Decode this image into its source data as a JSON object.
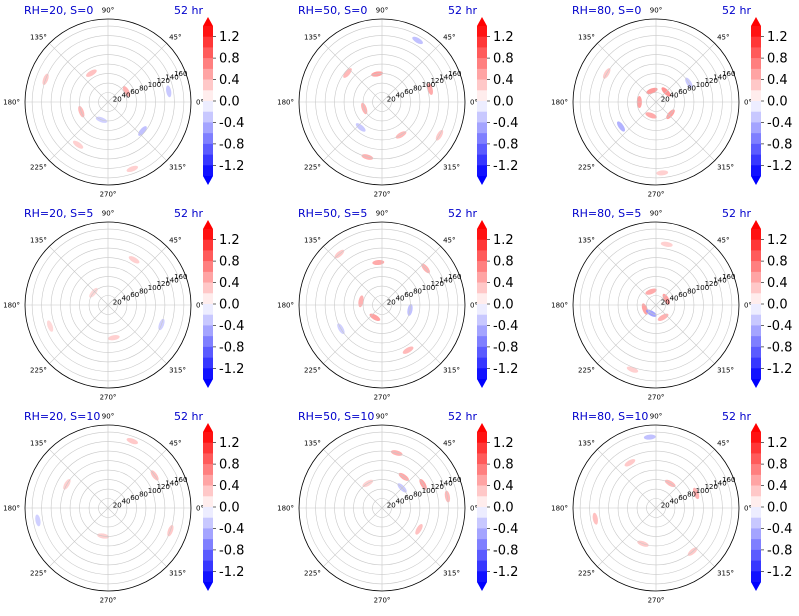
{
  "figure": {
    "panel_style": {
      "title_color": "#0000cc",
      "ring_color": "#c8c8c8",
      "spoke_color": "#c8c8c8",
      "outline_color": "#000000",
      "disc_fill": "#ffffff",
      "positive_color": "#ff0000",
      "negative_color": "#0000ff"
    },
    "colorbar": {
      "min": -1.4,
      "max": 1.4,
      "levels": 14,
      "tick_labels": [
        "1.2",
        "0.8",
        "0.4",
        "0.0",
        "-0.4",
        "-0.8",
        "-1.2"
      ],
      "ticks": [
        1.2,
        0.8,
        0.4,
        0.0,
        -0.4,
        -0.8,
        -1.2
      ],
      "extend": "both",
      "colormap": "bwr"
    }
  },
  "chart_data": [
    {
      "type": "heatmap",
      "projection": "polar",
      "title_left": "RH=20, S=0",
      "title_right": "52 hr",
      "theta_tick_labels": [
        "0°",
        "45°",
        "90°",
        "135°",
        "180°",
        "225°",
        "270°",
        "315°"
      ],
      "r_tick_labels": [
        "20",
        "40",
        "60",
        "80",
        "100",
        "120",
        "140",
        "160"
      ],
      "r_ticks": [
        20,
        40,
        60,
        80,
        100,
        120,
        140,
        160
      ],
      "rlim": [
        0,
        175
      ],
      "patches": [
        {
          "theta": 30,
          "r": 45,
          "value": 0.5
        },
        {
          "theta": 120,
          "r": 70,
          "value": 0.4
        },
        {
          "theta": 160,
          "r": 140,
          "value": 0.35
        },
        {
          "theta": 200,
          "r": 60,
          "value": 0.45
        },
        {
          "theta": 235,
          "r": 110,
          "value": 0.3
        },
        {
          "theta": 290,
          "r": 150,
          "value": 0.3
        },
        {
          "theta": 10,
          "r": 130,
          "value": -0.35
        },
        {
          "theta": 320,
          "r": 95,
          "value": -0.4
        },
        {
          "theta": 250,
          "r": 40,
          "value": -0.3
        }
      ]
    },
    {
      "type": "heatmap",
      "projection": "polar",
      "title_left": "RH=50, S=0",
      "title_right": "52 hr",
      "theta_tick_labels": [
        "0°",
        "45°",
        "90°",
        "135°",
        "180°",
        "225°",
        "270°",
        "315°"
      ],
      "r_tick_labels": [
        "20",
        "40",
        "60",
        "80",
        "100",
        "120",
        "140",
        "160"
      ],
      "r_ticks": [
        20,
        40,
        60,
        80,
        100,
        120,
        140,
        160
      ],
      "rlim": [
        0,
        175
      ],
      "patches": [
        {
          "theta": 15,
          "r": 105,
          "value": 0.55
        },
        {
          "theta": 100,
          "r": 60,
          "value": 0.6
        },
        {
          "theta": 140,
          "r": 95,
          "value": 0.45
        },
        {
          "theta": 200,
          "r": 40,
          "value": 0.5
        },
        {
          "theta": 255,
          "r": 120,
          "value": 0.5
        },
        {
          "theta": 300,
          "r": 80,
          "value": 0.45
        },
        {
          "theta": 330,
          "r": 140,
          "value": 0.35
        },
        {
          "theta": 60,
          "r": 150,
          "value": -0.4
        },
        {
          "theta": 230,
          "r": 70,
          "value": -0.35
        }
      ]
    },
    {
      "type": "heatmap",
      "projection": "polar",
      "title_left": "RH=80, S=0",
      "title_right": "52 hr",
      "theta_tick_labels": [
        "0°",
        "45°",
        "90°",
        "135°",
        "180°",
        "225°",
        "270°",
        "315°"
      ],
      "r_tick_labels": [
        "20",
        "40",
        "60",
        "80",
        "100",
        "120",
        "140",
        "160"
      ],
      "r_ticks": [
        20,
        40,
        60,
        80,
        100,
        120,
        140,
        160
      ],
      "rlim": [
        0,
        175
      ],
      "patches": [
        {
          "theta": 45,
          "r": 30,
          "value": 0.7
        },
        {
          "theta": 110,
          "r": 25,
          "value": 0.65
        },
        {
          "theta": 180,
          "r": 35,
          "value": 0.6
        },
        {
          "theta": 250,
          "r": 30,
          "value": 0.55
        },
        {
          "theta": 320,
          "r": 40,
          "value": 0.6
        },
        {
          "theta": 150,
          "r": 120,
          "value": 0.35
        },
        {
          "theta": 275,
          "r": 150,
          "value": 0.3
        },
        {
          "theta": 215,
          "r": 90,
          "value": -0.5
        },
        {
          "theta": 30,
          "r": 80,
          "value": -0.35
        }
      ]
    },
    {
      "type": "heatmap",
      "projection": "polar",
      "title_left": "RH=20, S=5",
      "title_right": "52 hr",
      "theta_tick_labels": [
        "0°",
        "45°",
        "90°",
        "135°",
        "180°",
        "225°",
        "270°",
        "315°"
      ],
      "r_tick_labels": [
        "20",
        "40",
        "60",
        "80",
        "100",
        "120",
        "140",
        "160"
      ],
      "r_ticks": [
        20,
        40,
        60,
        80,
        100,
        120,
        140,
        160
      ],
      "rlim": [
        0,
        175
      ],
      "patches": [
        {
          "theta": 60,
          "r": 110,
          "value": 0.3
        },
        {
          "theta": 200,
          "r": 130,
          "value": 0.25
        },
        {
          "theta": 280,
          "r": 70,
          "value": 0.3
        },
        {
          "theta": 340,
          "r": 120,
          "value": -0.3
        },
        {
          "theta": 140,
          "r": 40,
          "value": 0.25
        }
      ]
    },
    {
      "type": "heatmap",
      "projection": "polar",
      "title_left": "RH=50, S=5",
      "title_right": "52 hr",
      "theta_tick_labels": [
        "0°",
        "45°",
        "90°",
        "135°",
        "180°",
        "225°",
        "270°",
        "315°"
      ],
      "r_tick_labels": [
        "20",
        "40",
        "60",
        "80",
        "100",
        "120",
        "140",
        "160"
      ],
      "r_ticks": [
        20,
        40,
        60,
        80,
        100,
        120,
        140,
        160
      ],
      "rlim": [
        0,
        175
      ],
      "patches": [
        {
          "theta": 40,
          "r": 120,
          "value": 0.5
        },
        {
          "theta": 95,
          "r": 90,
          "value": 0.55
        },
        {
          "theta": 170,
          "r": 45,
          "value": 0.5
        },
        {
          "theta": 240,
          "r": 30,
          "value": 0.6
        },
        {
          "theta": 300,
          "r": 110,
          "value": 0.45
        },
        {
          "theta": 130,
          "r": 140,
          "value": 0.35
        },
        {
          "theta": 350,
          "r": 60,
          "value": -0.4
        },
        {
          "theta": 210,
          "r": 100,
          "value": -0.3
        }
      ]
    },
    {
      "type": "heatmap",
      "projection": "polar",
      "title_left": "RH=80, S=5",
      "title_right": "52 hr",
      "theta_tick_labels": [
        "0°",
        "45°",
        "90°",
        "135°",
        "180°",
        "225°",
        "270°",
        "315°"
      ],
      "r_tick_labels": [
        "20",
        "40",
        "60",
        "80",
        "100",
        "120",
        "140",
        "160"
      ],
      "r_ticks": [
        20,
        40,
        60,
        80,
        100,
        120,
        140,
        160
      ],
      "rlim": [
        0,
        175
      ],
      "patches": [
        {
          "theta": 30,
          "r": 25,
          "value": 0.6
        },
        {
          "theta": 110,
          "r": 30,
          "value": 0.55
        },
        {
          "theta": 200,
          "r": 25,
          "value": 0.6
        },
        {
          "theta": 300,
          "r": 30,
          "value": 0.5
        },
        {
          "theta": 240,
          "r": 20,
          "value": -0.6
        },
        {
          "theta": 80,
          "r": 130,
          "value": 0.3
        },
        {
          "theta": 250,
          "r": 145,
          "value": 0.3
        }
      ]
    },
    {
      "type": "heatmap",
      "projection": "polar",
      "title_left": "RH=20, S=10",
      "title_right": "52 hr",
      "theta_tick_labels": [
        "0°",
        "45°",
        "90°",
        "135°",
        "180°",
        "225°",
        "270°",
        "315°"
      ],
      "r_tick_labels": [
        "20",
        "40",
        "60",
        "80",
        "100",
        "120",
        "140",
        "160"
      ],
      "r_ticks": [
        20,
        40,
        60,
        80,
        100,
        120,
        140,
        160
      ],
      "rlim": [
        0,
        175
      ],
      "patches": [
        {
          "theta": 35,
          "r": 120,
          "value": 0.4
        },
        {
          "theta": 70,
          "r": 150,
          "value": 0.35
        },
        {
          "theta": 150,
          "r": 100,
          "value": 0.3
        },
        {
          "theta": 340,
          "r": 140,
          "value": 0.35
        },
        {
          "theta": 260,
          "r": 60,
          "value": 0.3
        },
        {
          "theta": 190,
          "r": 150,
          "value": -0.3
        }
      ]
    },
    {
      "type": "heatmap",
      "projection": "polar",
      "title_left": "RH=50, S=10",
      "title_right": "52 hr",
      "theta_tick_labels": [
        "0°",
        "45°",
        "90°",
        "135°",
        "180°",
        "225°",
        "270°",
        "315°"
      ],
      "r_tick_labels": [
        "20",
        "40",
        "60",
        "80",
        "100",
        "120",
        "140",
        "160"
      ],
      "r_ticks": [
        20,
        40,
        60,
        80,
        100,
        120,
        140,
        160
      ],
      "rlim": [
        0,
        175
      ],
      "patches": [
        {
          "theta": 30,
          "r": 100,
          "value": 0.6
        },
        {
          "theta": 55,
          "r": 80,
          "value": 0.55
        },
        {
          "theta": 75,
          "r": 120,
          "value": 0.5
        },
        {
          "theta": 10,
          "r": 140,
          "value": 0.45
        },
        {
          "theta": 330,
          "r": 90,
          "value": 0.4
        },
        {
          "theta": 120,
          "r": 60,
          "value": 0.3
        },
        {
          "theta": 45,
          "r": 60,
          "value": -0.35
        }
      ]
    },
    {
      "type": "heatmap",
      "projection": "polar",
      "title_left": "RH=80, S=10",
      "title_right": "52 hr",
      "theta_tick_labels": [
        "0°",
        "45°",
        "90°",
        "135°",
        "180°",
        "225°",
        "270°",
        "315°"
      ],
      "r_tick_labels": [
        "20",
        "40",
        "60",
        "80",
        "100",
        "120",
        "140",
        "160"
      ],
      "r_ticks": [
        20,
        40,
        60,
        80,
        100,
        120,
        140,
        160
      ],
      "rlim": [
        0,
        175
      ],
      "patches": [
        {
          "theta": 60,
          "r": 60,
          "value": 0.45
        },
        {
          "theta": 20,
          "r": 90,
          "value": 0.5
        },
        {
          "theta": 120,
          "r": 110,
          "value": 0.35
        },
        {
          "theta": 190,
          "r": 130,
          "value": 0.4
        },
        {
          "theta": 250,
          "r": 80,
          "value": 0.35
        },
        {
          "theta": 310,
          "r": 120,
          "value": 0.35
        },
        {
          "theta": 95,
          "r": 150,
          "value": -0.4
        }
      ]
    }
  ]
}
